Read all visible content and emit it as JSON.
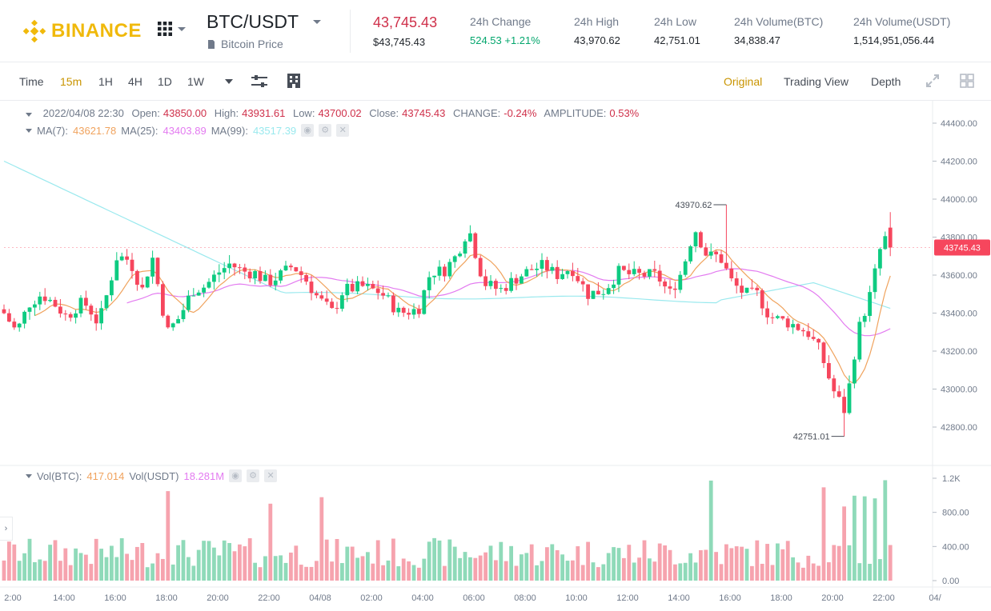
{
  "header": {
    "logo_text": "BINANCE",
    "pair": "BTC/USDT",
    "pair_sub": "Bitcoin Price",
    "last_price": "43,745.43",
    "last_price_usd": "$43,745.43",
    "stats": [
      {
        "label": "24h Change",
        "value": "524.53 +1.21%",
        "color": "green"
      },
      {
        "label": "24h High",
        "value": "43,970.62"
      },
      {
        "label": "24h Low",
        "value": "42,751.01"
      },
      {
        "label": "24h Volume(BTC)",
        "value": "34,838.47"
      },
      {
        "label": "24h Volume(USDT)",
        "value": "1,514,951,056.44"
      }
    ]
  },
  "toolbar": {
    "timeframes": [
      "Time",
      "15m",
      "1H",
      "4H",
      "1D",
      "1W"
    ],
    "active_timeframe": "15m",
    "views": [
      "Original",
      "Trading View",
      "Depth"
    ],
    "active_view": "Original"
  },
  "ohlc": {
    "date": "2022/04/08 22:30",
    "open_label": "Open:",
    "open": "43850.00",
    "high_label": "High:",
    "high": "43931.61",
    "low_label": "Low:",
    "low": "43700.02",
    "close_label": "Close:",
    "close": "43745.43",
    "change_label": "CHANGE:",
    "change": "-0.24%",
    "amp_label": "AMPLITUDE:",
    "amp": "0.53%"
  },
  "ma": {
    "ma7_label": "MA(7):",
    "ma7": "43621.78",
    "ma25_label": "MA(25):",
    "ma25": "43403.89",
    "ma99_label": "MA(99):",
    "ma99": "43517.39"
  },
  "vol": {
    "btc_label": "Vol(BTC):",
    "btc": "417.014",
    "usdt_label": "Vol(USDT)",
    "usdt": "18.281M"
  },
  "colors": {
    "up": "#0ecb81",
    "down": "#f6465d",
    "ma7": "#f0a35e",
    "ma25": "#e37bf0",
    "ma99": "#9ae9ee",
    "accent": "#f0b90b"
  },
  "chart_data": {
    "type": "candlestick",
    "price_axis_ticks": [
      44400,
      44200,
      44000,
      43800,
      43600,
      43400,
      43200,
      43000,
      42800
    ],
    "price_axis_labels": [
      "44400.00",
      "44200.00",
      "44000.00",
      "43800.00",
      "43600.00",
      "43400.00",
      "43200.00",
      "43000.00",
      "42800.00"
    ],
    "current_price_label": "43745.43",
    "high_marker_label": "43970.62",
    "low_marker_label": "42751.01",
    "volume_axis_labels": [
      "1.2K",
      "800.00",
      "400.00",
      "0.00"
    ],
    "volume_axis_ticks": [
      1200,
      800,
      400,
      0
    ],
    "time_labels": [
      "2:00",
      "14:00",
      "16:00",
      "18:00",
      "20:00",
      "22:00",
      "04/08",
      "02:00",
      "04:00",
      "06:00",
      "08:00",
      "10:00",
      "12:00",
      "14:00",
      "16:00",
      "18:00",
      "20:00",
      "22:00",
      "04/"
    ]
  }
}
